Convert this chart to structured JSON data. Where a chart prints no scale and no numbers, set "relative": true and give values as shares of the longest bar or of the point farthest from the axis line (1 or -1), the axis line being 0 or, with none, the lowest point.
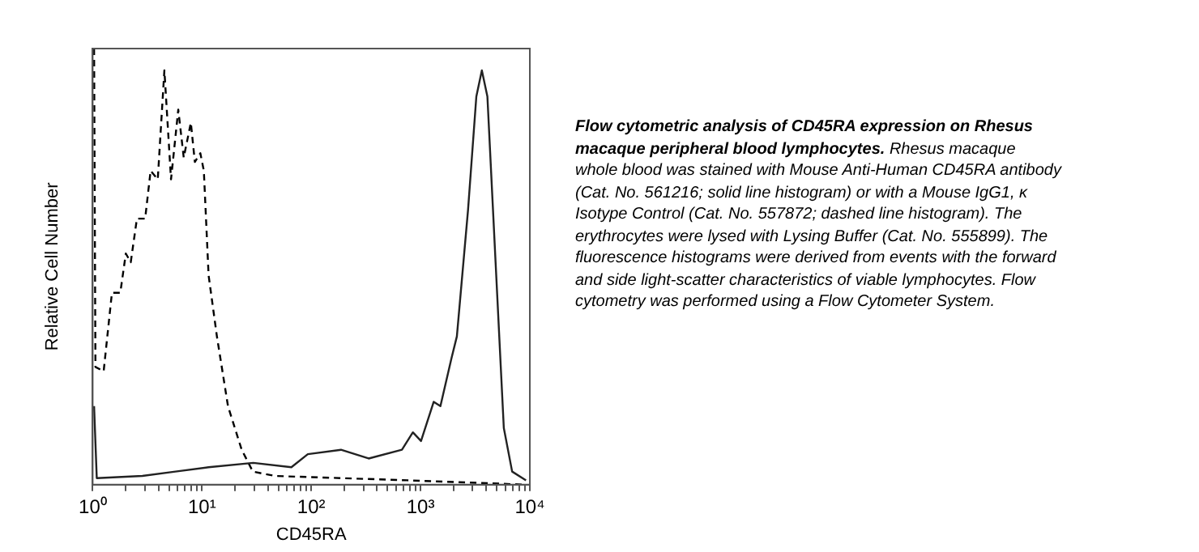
{
  "chart_data": {
    "type": "line",
    "title": "Flow cytometric analysis of CD45RA expression on Rhesus macaque peripheral blood lymphocytes.",
    "xlabel": "CD45RA",
    "ylabel": "Relative Cell Number",
    "relative": true,
    "log": "x",
    "xlim": [
      1,
      10000
    ],
    "xticks": [
      {
        "value": 1,
        "label": "10⁰"
      },
      {
        "value": 2,
        "label": null
      },
      {
        "value": 3,
        "label": null
      },
      {
        "value": 4,
        "label": null
      },
      {
        "value": 5,
        "label": null
      },
      {
        "value": 6,
        "label": null
      },
      {
        "value": 7,
        "label": null
      },
      {
        "value": 8,
        "label": null
      },
      {
        "value": 9,
        "label": null
      },
      {
        "value": 10,
        "label": "10¹"
      },
      {
        "value": 20,
        "label": null
      },
      {
        "value": 30,
        "label": null
      },
      {
        "value": 40,
        "label": null
      },
      {
        "value": 50,
        "label": null
      },
      {
        "value": 60,
        "label": null
      },
      {
        "value": 70,
        "label": null
      },
      {
        "value": 80,
        "label": null
      },
      {
        "value": 90,
        "label": null
      },
      {
        "value": 100,
        "label": "10²"
      },
      {
        "value": 200,
        "label": null
      },
      {
        "value": 300,
        "label": null
      },
      {
        "value": 400,
        "label": null
      },
      {
        "value": 500,
        "label": null
      },
      {
        "value": 600,
        "label": null
      },
      {
        "value": 700,
        "label": null
      },
      {
        "value": 800,
        "label": null
      },
      {
        "value": 900,
        "label": null
      },
      {
        "value": 1000,
        "label": "10³"
      },
      {
        "value": 2000,
        "label": null
      },
      {
        "value": 3000,
        "label": null
      },
      {
        "value": 4000,
        "label": null
      },
      {
        "value": 5000,
        "label": null
      },
      {
        "value": 6000,
        "label": null
      },
      {
        "value": 7000,
        "label": null
      },
      {
        "value": 8000,
        "label": null
      },
      {
        "value": 9000,
        "label": null
      },
      {
        "value": 10000,
        "label": "10⁴"
      }
    ],
    "grid": false,
    "legend": false,
    "marker": "none",
    "series": [
      {
        "color": "#222222",
        "line_style": "solid",
        "x": [
          1.03,
          1.09,
          2.85,
          5.72,
          11.5,
          29.5,
          65.8,
          93,
          187,
          335,
          676,
          851,
          1010,
          1320,
          1520,
          1920,
          2150,
          2720,
          3240,
          3640,
          4090,
          4860,
          5780,
          6890,
          9230
        ],
        "values": [
          0.18,
          0.015,
          0.02,
          0.03,
          0.04,
          0.05,
          0.04,
          0.07,
          0.08,
          0.06,
          0.08,
          0.12,
          0.1,
          0.19,
          0.18,
          0.29,
          0.34,
          0.63,
          0.89,
          0.95,
          0.89,
          0.51,
          0.13,
          0.03,
          0.01
        ]
      },
      {
        "color": "#000000",
        "line_style": "dashed",
        "x": [
          1.03,
          1.06,
          1.26,
          1.5,
          1.79,
          2.01,
          2.23,
          2.54,
          3.02,
          3.39,
          3.94,
          4.53,
          5.21,
          6.07,
          6.81,
          7.91,
          8.61,
          9.66,
          10.4,
          11.5,
          13.7,
          17.3,
          23.1,
          29.2,
          46.4,
          758,
          9300
        ],
        "values": [
          1,
          0.27,
          0.26,
          0.44,
          0.44,
          0.53,
          0.51,
          0.61,
          0.61,
          0.72,
          0.7,
          0.95,
          0.7,
          0.86,
          0.75,
          0.83,
          0.74,
          0.76,
          0.72,
          0.48,
          0.34,
          0.18,
          0.08,
          0.03,
          0.02,
          0.01,
          0
        ]
      }
    ],
    "annotations": [
      "Rhesus macaque whole blood was stained with Mouse Anti-Human CD45RA antibody (Cat. No. 561216; solid line histogram) or with a Mouse IgG1, κ Isotype Control (Cat. No. 557872; dashed line histogram). The erythrocytes were lysed with Lysing Buffer (Cat. No. 555899). The fluorescence histograms were derived from events with the forward and side light-scatter characteristics of viable lymphocytes. Flow cytometry was performed using a Flow Cytometer System."
    ]
  }
}
